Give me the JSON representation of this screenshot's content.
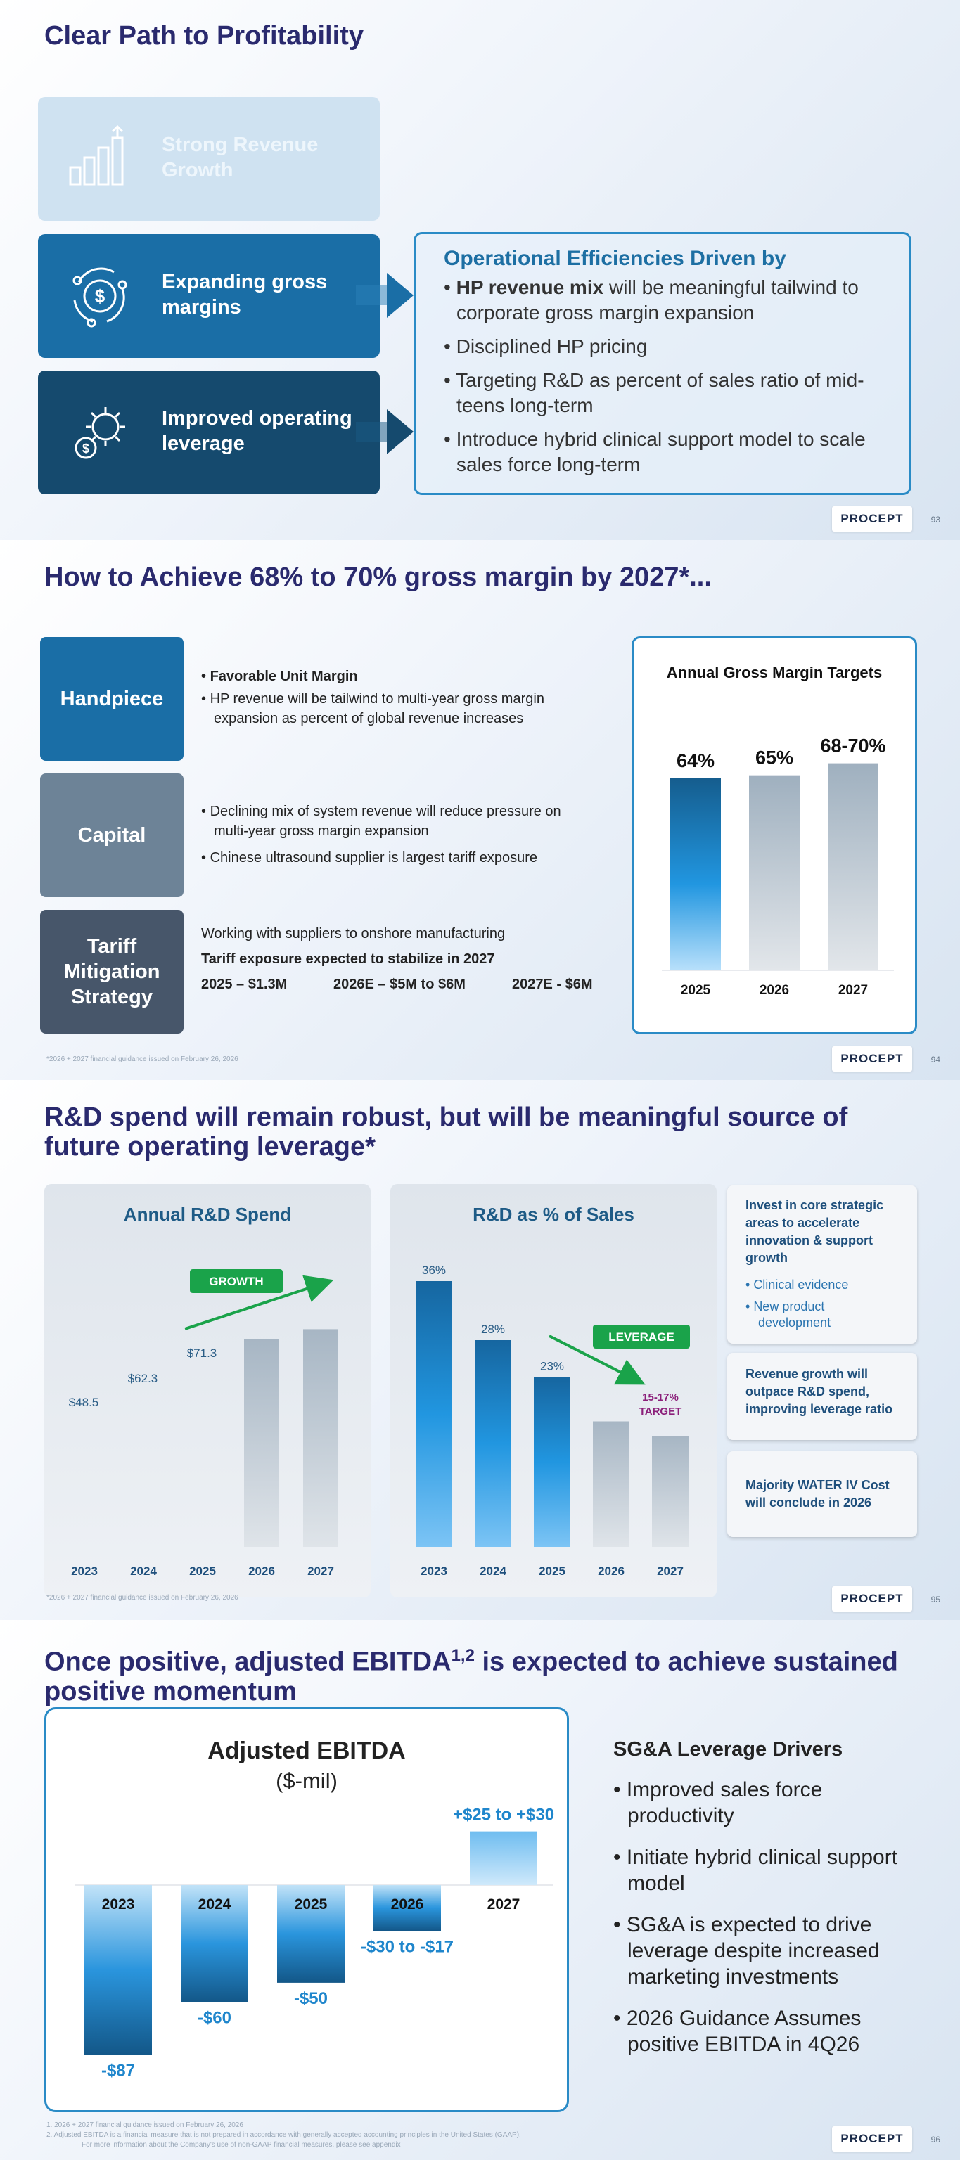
{
  "slide1": {
    "title": "Clear Path to Profitability",
    "pills": [
      {
        "label": "Strong Revenue Growth"
      },
      {
        "label": "Expanding gross margins"
      },
      {
        "label": "Improved operating leverage"
      }
    ],
    "ops_box": {
      "heading": "Operational Efficiencies Driven by",
      "bullet1_bold": "HP revenue mix",
      "bullet1_rest": " will be meaningful tailwind to corporate gross margin expansion",
      "bullet2": "Disciplined HP pricing",
      "bullet3": "Targeting R&D as percent of sales ratio of mid-teens long-term",
      "bullet4": "Introduce hybrid clinical support model to scale sales force long-term"
    },
    "logo": "PROCEPT",
    "page": "93"
  },
  "slide2": {
    "title": "How to Achieve 68% to 70% gross margin by 2027*...",
    "handpiece": {
      "label": "Handpiece",
      "bullet1": "Favorable Unit Margin",
      "bullet2": "HP revenue will be tailwind to multi-year gross margin expansion as percent of global revenue increases"
    },
    "capital": {
      "label": "Capital",
      "bullet1": "Declining mix of system revenue will reduce pressure on multi-year gross margin expansion",
      "bullet2": "Chinese ultrasound supplier is largest tariff exposure"
    },
    "tariff": {
      "label": "Tariff Mitigation Strategy",
      "line1": "Working with suppliers to onshore manufacturing",
      "line2": "Tariff exposure expected to stabilize in 2027",
      "v1": "2025 – $1.3M",
      "v2": "2026E – $5M to $6M",
      "v3": "2027E - $6M"
    },
    "footnote": "*2026 + 2027 financial guidance issued on February 26, 2026",
    "logo": "PROCEPT",
    "page": "94"
  },
  "slide3": {
    "title_line1": "R&D spend will remain robust, but will be meaningful source of",
    "title_line2": "future operating leverage*",
    "rd_panel_title": "Annual R&D Spend",
    "pct_panel_title": "R&D as % of Sales",
    "growth_badge": "GROWTH",
    "leverage_badge": "LEVERAGE",
    "target_label_line1": "15-17%",
    "target_label_line2": "TARGET",
    "card1_title": "Invest in core strategic areas to accelerate innovation & support growth",
    "card1_bullet1": "Clinical evidence",
    "card1_bullet2": "New product development",
    "card2": "Revenue growth will outpace R&D spend, improving leverage ratio",
    "card3": "Majority WATER IV Cost will conclude in 2026",
    "footnote": "*2026 + 2027 financial guidance issued on February 26, 2026",
    "logo": "PROCEPT",
    "page": "95"
  },
  "slide4": {
    "title_line1": "Once positive, adjusted EBITDA",
    "title_sup": "1,2",
    "title_line1_rest": " is expected to achieve sustained",
    "title_line2": "positive momentum",
    "box_title": "Adjusted EBITDA",
    "box_subtitle": "($-mil)",
    "drivers_title": "SG&A Leverage Drivers",
    "driver1": "Improved sales force productivity",
    "driver2": "Initiate hybrid clinical support model",
    "driver3": "SG&A is expected to drive leverage despite increased marketing investments",
    "driver4": "2026 Guidance Assumes positive EBITDA in 4Q26",
    "footnote1": "1.     2026 + 2027 financial guidance issued on February 26, 2026",
    "footnote2": "2.     Adjusted EBITDA is a financial measure that is not prepared in accordance with generally accepted accounting principles in the United States (GAAP).",
    "footnote3": "For more information about the Company's use of non-GAAP financial measures, please see appendix",
    "logo": "PROCEPT",
    "page": "96"
  },
  "chart_data": [
    {
      "type": "bar",
      "title": "Annual Gross Margin Targets",
      "categories": [
        "2025",
        "2026",
        "2027"
      ],
      "values": [
        64,
        65,
        69
      ],
      "labels": [
        "64%",
        "65%",
        "68-70%"
      ],
      "ylim": [
        0,
        75
      ]
    },
    {
      "type": "bar",
      "title": "Annual R&D Spend",
      "categories": [
        "2023",
        "2024",
        "2025",
        "2026",
        "2027"
      ],
      "values": [
        48.5,
        62.3,
        71.3,
        82,
        86
      ],
      "labels": [
        "$48.5",
        "$62.3",
        "$71.3",
        "",
        ""
      ],
      "ylim": [
        0,
        100
      ]
    },
    {
      "type": "bar",
      "title": "R&D as % of Sales",
      "categories": [
        "2023",
        "2024",
        "2025",
        "2026",
        "2027"
      ],
      "values": [
        36,
        28,
        23,
        17,
        15
      ],
      "labels": [
        "36%",
        "28%",
        "23%",
        "",
        ""
      ],
      "ylim": [
        0,
        40
      ]
    },
    {
      "type": "bar",
      "title": "Adjusted EBITDA ($-mil)",
      "categories": [
        "2023",
        "2024",
        "2025",
        "2026",
        "2027"
      ],
      "values": [
        -87,
        -60,
        -50,
        -23.5,
        27.5
      ],
      "labels": [
        "-$87",
        "-$60",
        "-$50",
        "-$30 to -$17",
        "+$25 to +$30"
      ],
      "ylim": [
        -90,
        35
      ]
    }
  ]
}
